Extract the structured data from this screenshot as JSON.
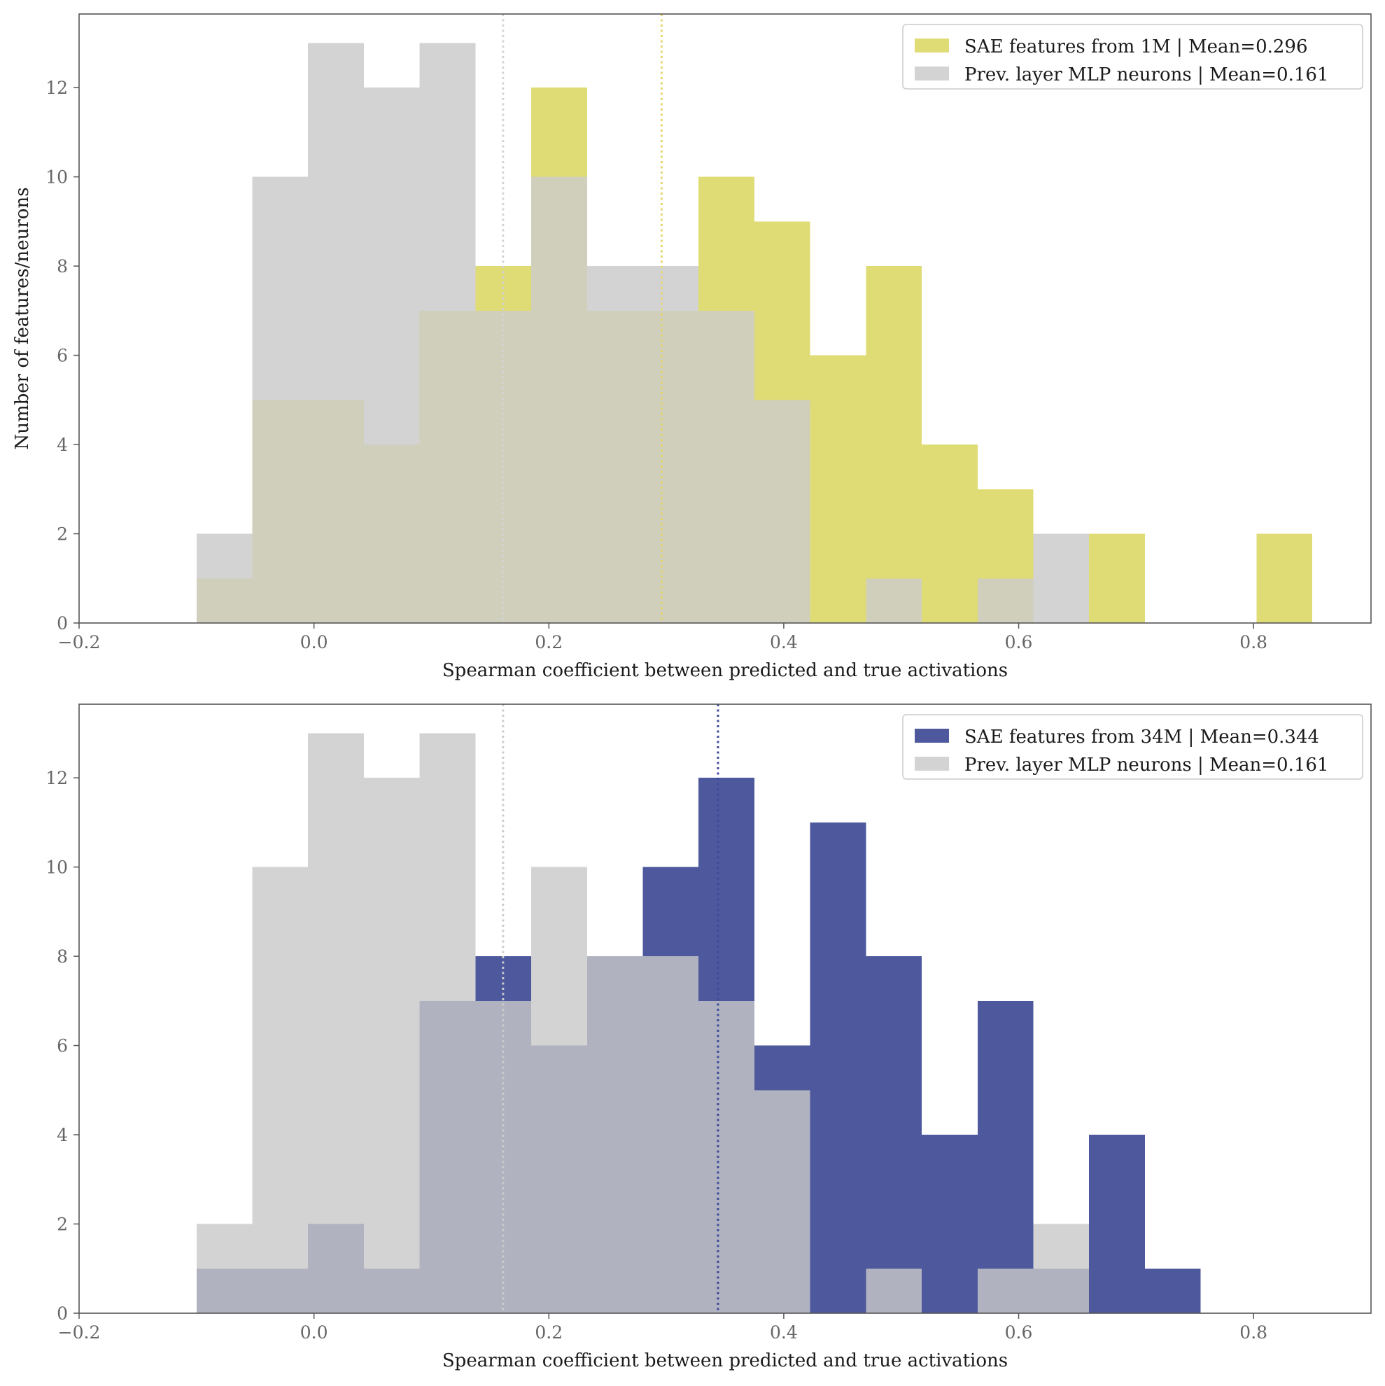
{
  "chart_data": [
    {
      "type": "histogram",
      "bin_edges": [
        -0.1,
        -0.0525,
        -0.005,
        0.0425,
        0.09,
        0.1375,
        0.185,
        0.2325,
        0.28,
        0.3275,
        0.375,
        0.4225,
        0.47,
        0.5175,
        0.565,
        0.6125,
        0.66,
        0.7075,
        0.755,
        0.8025,
        0.85
      ],
      "series": [
        {
          "name": "Prev. layer MLP neurons | Mean=0.161",
          "values": [
            2,
            10,
            13,
            12,
            13,
            7,
            10,
            8,
            8,
            7,
            5,
            0,
            1,
            0,
            1,
            2,
            0,
            0,
            0,
            0
          ],
          "color": "#d3d3d3",
          "mean": 0.161
        },
        {
          "name": "SAE features from 1M | Mean=0.296",
          "values": [
            1,
            5,
            5,
            4,
            7,
            8,
            12,
            7,
            7,
            10,
            9,
            6,
            8,
            4,
            3,
            0,
            2,
            0,
            0,
            2
          ],
          "color": "#e0dc75",
          "mean": 0.296
        }
      ],
      "overlap_color": "#cfcfbb",
      "mean_line_colors": [
        "#d3d3d3",
        "#e6d66f"
      ],
      "xlabel": "Spearman coefficient between predicted and true activations",
      "ylabel": "Number of features/neurons",
      "xlim": [
        -0.2,
        0.9
      ],
      "ylim": [
        0,
        13.65
      ],
      "xticks": [
        "−0.2",
        "0.0",
        "0.2",
        "0.4",
        "0.6",
        "0.8"
      ],
      "yticks": [
        "0",
        "2",
        "4",
        "6",
        "8",
        "10",
        "12"
      ],
      "legend_position": "top-right",
      "grid": false
    },
    {
      "type": "histogram",
      "bin_edges": [
        -0.1,
        -0.0525,
        -0.005,
        0.0425,
        0.09,
        0.1375,
        0.185,
        0.2325,
        0.28,
        0.3275,
        0.375,
        0.4225,
        0.47,
        0.5175,
        0.565,
        0.6125,
        0.66,
        0.7075,
        0.755,
        0.8025,
        0.85
      ],
      "series": [
        {
          "name": "Prev. layer MLP neurons | Mean=0.161",
          "values": [
            2,
            10,
            13,
            12,
            13,
            7,
            10,
            8,
            8,
            7,
            5,
            0,
            1,
            0,
            1,
            2,
            0,
            0,
            0,
            0
          ],
          "color": "#d3d3d3",
          "mean": 0.161
        },
        {
          "name": "SAE features from 34M | Mean=0.344",
          "values": [
            1,
            1,
            2,
            1,
            7,
            8,
            6,
            8,
            10,
            12,
            6,
            11,
            8,
            4,
            7,
            1,
            4,
            1,
            0,
            0
          ],
          "color": "#4d589d",
          "mean": 0.344
        }
      ],
      "overlap_color": "#b0b2c0",
      "mean_line_colors": [
        "#cccccc",
        "#3d4a9a"
      ],
      "xlabel": "Spearman coefficient between predicted and true activations",
      "ylabel": "",
      "xlim": [
        -0.2,
        0.9
      ],
      "ylim": [
        0,
        13.65
      ],
      "xticks": [
        "−0.2",
        "0.0",
        "0.2",
        "0.4",
        "0.6",
        "0.8"
      ],
      "yticks": [
        "0",
        "2",
        "4",
        "6",
        "8",
        "10",
        "12"
      ],
      "legend_position": "top-right",
      "grid": false
    }
  ]
}
